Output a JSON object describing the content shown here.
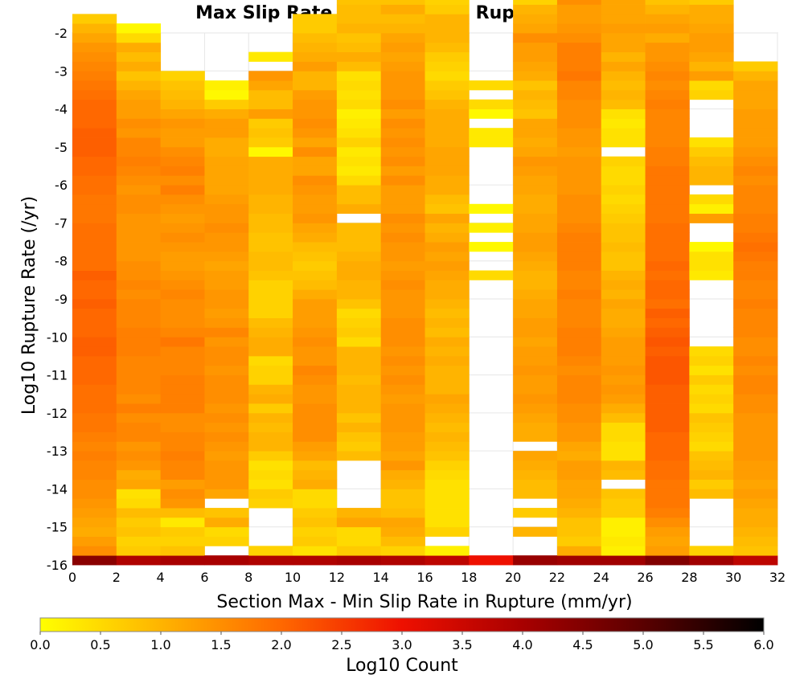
{
  "chart_data": {
    "type": "heatmap",
    "title": "Max Slip Rate Difference vs Rupture Rate",
    "xlabel": "Section Max - Min Slip Rate in Rupture (mm/yr)",
    "ylabel": "Log10 Rupture Rate (/yr)",
    "xlim": [
      0,
      32
    ],
    "ylim": [
      -16,
      -2
    ],
    "x_ticks": [
      0,
      2,
      4,
      6,
      8,
      10,
      12,
      14,
      16,
      18,
      20,
      22,
      24,
      26,
      28,
      30,
      32
    ],
    "y_ticks": [
      -2,
      -3,
      -4,
      -5,
      -6,
      -7,
      -8,
      -9,
      -10,
      -11,
      -12,
      -13,
      -14,
      -15,
      -16
    ],
    "x_bin_width": 2,
    "y_bin_height": 0.25,
    "y_bin_start": -16,
    "grid": true,
    "colorbar": {
      "label": "Log10 Count",
      "range": [
        0,
        6
      ],
      "ticks": [
        "0.0",
        "0.5",
        "1.0",
        "1.5",
        "2.0",
        "2.5",
        "3.0",
        "3.5",
        "4.0",
        "4.5",
        "5.0",
        "5.5",
        "6.0"
      ],
      "stops": [
        {
          "value": 0.0,
          "color": "#ffff00"
        },
        {
          "value": 1.0,
          "color": "#ffb400"
        },
        {
          "value": 2.0,
          "color": "#ff6800"
        },
        {
          "value": 3.0,
          "color": "#ee1000"
        },
        {
          "value": 4.0,
          "color": "#a80000"
        },
        {
          "value": 5.0,
          "color": "#5a0000"
        },
        {
          "value": 6.0,
          "color": "#000000"
        }
      ]
    },
    "columns": [
      {
        "x0": 0,
        "values": [
          4.4,
          1.5,
          1.3,
          1.1,
          1.2,
          1.3,
          1.4,
          1.5,
          1.5,
          1.6,
          1.6,
          1.7,
          1.6,
          1.7,
          1.8,
          1.8,
          1.9,
          1.9,
          1.9,
          2.0,
          2.0,
          2.0,
          2.1,
          2.1,
          2.0,
          2.0,
          2.0,
          2.1,
          2.0,
          2.0,
          2.1,
          1.9,
          1.9,
          1.9,
          1.9,
          1.9,
          1.8,
          1.8,
          1.8,
          1.9,
          1.9,
          2.0,
          2.0,
          2.1,
          2.1,
          2.1,
          2.0,
          2.0,
          2.0,
          1.9,
          1.8,
          1.7,
          1.6,
          1.5,
          1.4,
          1.2,
          1.0,
          0.7,
          null,
          null,
          null,
          null,
          null,
          null,
          null,
          null
        ]
      },
      {
        "x0": 2,
        "values": [
          3.9,
          0.7,
          0.6,
          0.8,
          0.7,
          0.9,
          0.5,
          0.4,
          1.2,
          1.1,
          1.4,
          1.5,
          1.4,
          1.6,
          1.6,
          1.5,
          1.7,
          1.5,
          1.6,
          1.6,
          1.6,
          1.6,
          1.7,
          1.7,
          1.7,
          1.6,
          1.6,
          1.6,
          1.5,
          1.6,
          1.5,
          1.5,
          1.4,
          1.4,
          1.4,
          1.4,
          1.4,
          1.5,
          1.5,
          1.4,
          1.5,
          1.6,
          1.7,
          1.6,
          1.6,
          1.4,
          1.5,
          1.3,
          1.3,
          1.2,
          1.0,
          0.8,
          1.1,
          0.9,
          1.1,
          0.5,
          0.1,
          null,
          null,
          null,
          null,
          null,
          null,
          null,
          null,
          null
        ]
      },
      {
        "x0": 4,
        "values": [
          4.0,
          0.8,
          0.6,
          0.7,
          0.3,
          0.9,
          1.4,
          1.5,
          1.3,
          1.6,
          1.6,
          1.7,
          1.6,
          1.6,
          1.5,
          1.5,
          1.7,
          1.7,
          1.7,
          1.7,
          1.6,
          1.6,
          1.6,
          1.8,
          1.6,
          1.5,
          1.5,
          1.5,
          1.6,
          1.5,
          1.4,
          1.3,
          1.3,
          1.4,
          1.5,
          1.4,
          1.3,
          1.4,
          1.5,
          1.7,
          1.5,
          1.7,
          1.6,
          1.5,
          1.3,
          1.3,
          1.4,
          1.2,
          1.0,
          0.9,
          0.8,
          0.6,
          null,
          null,
          null,
          null,
          null,
          null,
          null,
          null,
          null,
          null,
          null,
          null,
          null,
          null
        ]
      },
      {
        "x0": 6,
        "values": [
          4.0,
          null,
          0.6,
          0.5,
          1.1,
          0.8,
          null,
          1.2,
          1.4,
          1.4,
          1.4,
          1.3,
          1.4,
          1.5,
          1.4,
          1.5,
          1.4,
          1.5,
          1.5,
          1.5,
          1.4,
          1.5,
          1.5,
          1.4,
          1.6,
          1.4,
          1.3,
          1.4,
          1.4,
          1.3,
          1.3,
          1.2,
          1.3,
          1.4,
          1.4,
          1.5,
          1.4,
          1.4,
          1.3,
          1.2,
          1.2,
          1.2,
          1.2,
          1.1,
          1.1,
          1.3,
          1.3,
          1.1,
          0.7,
          0.1,
          0.2,
          null,
          null,
          null,
          null,
          null,
          null,
          null,
          null,
          null,
          null,
          null,
          null,
          null,
          null,
          null
        ]
      },
      {
        "x0": 8,
        "values": [
          3.9,
          0.6,
          null,
          null,
          null,
          null,
          0.6,
          0.7,
          0.4,
          0.5,
          0.4,
          0.7,
          1.0,
          1.0,
          0.9,
          1.0,
          0.7,
          1.1,
          1.0,
          0.6,
          0.6,
          0.5,
          1.1,
          1.1,
          1.0,
          0.9,
          0.6,
          0.6,
          0.6,
          0.6,
          0.8,
          0.9,
          0.9,
          0.8,
          0.8,
          0.9,
          0.9,
          1.0,
          1.0,
          1.1,
          1.1,
          1.1,
          1.1,
          0.1,
          0.7,
          0.8,
          0.7,
          1.3,
          0.9,
          0.9,
          1.2,
          1.4,
          null,
          0.3,
          null,
          null,
          null,
          null,
          null,
          null,
          null,
          null,
          null,
          null,
          null,
          null,
          null,
          null
        ]
      },
      {
        "x0": 10,
        "values": [
          3.9,
          0.4,
          0.7,
          0.6,
          0.8,
          0.7,
          0.5,
          0.5,
          1.1,
          1.0,
          0.9,
          1.2,
          1.3,
          1.5,
          1.5,
          1.5,
          1.5,
          1.4,
          1.4,
          1.5,
          1.6,
          1.4,
          1.4,
          1.5,
          1.4,
          1.3,
          1.3,
          1.3,
          1.1,
          0.9,
          0.8,
          0.7,
          0.8,
          0.9,
          1.1,
          1.2,
          1.4,
          1.3,
          1.3,
          1.4,
          1.5,
          1.2,
          1.2,
          1.5,
          1.2,
          1.4,
          1.5,
          1.4,
          1.4,
          1.3,
          1.0,
          1.0,
          1.3,
          1.1,
          1.0,
          0.9,
          0.7,
          0.7,
          null,
          null,
          null,
          null,
          null,
          null,
          null,
          null,
          null,
          null
        ]
      },
      {
        "x0": 12,
        "values": [
          4.0,
          0.7,
          0.5,
          0.5,
          1.2,
          1.0,
          null,
          null,
          null,
          null,
          null,
          0.9,
          0.7,
          0.8,
          1.0,
          0.8,
          1.0,
          1.0,
          1.0,
          0.9,
          1.0,
          1.0,
          1.0,
          0.5,
          0.7,
          0.6,
          0.5,
          0.8,
          1.0,
          1.0,
          1.1,
          1.1,
          1.0,
          0.9,
          0.9,
          0.9,
          null,
          1.1,
          0.9,
          0.9,
          0.5,
          0.3,
          0.4,
          0.3,
          0.6,
          0.4,
          0.3,
          0.2,
          0.5,
          0.4,
          0.5,
          0.4,
          0.9,
          1.1,
          0.9,
          0.8,
          1.0,
          0.9,
          0.9,
          0.8,
          0.6,
          0.5,
          null,
          null,
          null,
          null
        ]
      },
      {
        "x0": 14,
        "values": [
          3.9,
          0.6,
          0.9,
          1.1,
          1.2,
          0.9,
          0.8,
          0.8,
          1.0,
          1.1,
          1.4,
          1.2,
          1.3,
          1.3,
          1.4,
          1.4,
          1.4,
          1.3,
          1.4,
          1.5,
          1.4,
          1.5,
          1.4,
          1.5,
          1.5,
          1.5,
          1.4,
          1.4,
          1.4,
          1.5,
          1.4,
          1.3,
          1.4,
          1.4,
          1.5,
          1.4,
          1.5,
          1.3,
          1.3,
          1.3,
          1.5,
          1.3,
          1.5,
          1.4,
          1.5,
          1.4,
          1.5,
          1.3,
          1.5,
          1.4,
          1.4,
          1.4,
          1.3,
          1.2,
          1.3,
          1.2,
          1.0,
          0.9,
          1.1,
          0.8,
          0.6,
          null,
          null,
          null,
          null,
          null
        ]
      },
      {
        "x0": 16,
        "values": [
          3.7,
          0.2,
          null,
          0.6,
          0.4,
          0.4,
          0.4,
          0.4,
          0.4,
          0.5,
          0.6,
          0.8,
          0.9,
          1.0,
          0.9,
          1.0,
          1.1,
          1.2,
          1.0,
          1.0,
          1.0,
          1.1,
          1.0,
          1.1,
          0.9,
          1.0,
          0.9,
          1.0,
          1.1,
          1.1,
          1.2,
          1.3,
          1.2,
          1.3,
          1.1,
          1.0,
          1.2,
          0.8,
          0.9,
          1.1,
          1.1,
          1.2,
          1.2,
          1.2,
          1.1,
          1.1,
          1.1,
          1.1,
          1.0,
          0.8,
          0.7,
          0.5,
          0.6,
          0.7,
          0.9,
          1.0,
          1.0,
          1.0,
          0.7,
          0.6,
          null,
          null,
          null,
          null,
          null,
          null
        ]
      },
      {
        "x0": 18,
        "values": [
          3.0,
          null,
          null,
          null,
          null,
          null,
          null,
          null,
          null,
          null,
          null,
          null,
          null,
          null,
          null,
          null,
          null,
          null,
          null,
          null,
          null,
          null,
          null,
          null,
          null,
          null,
          null,
          null,
          null,
          null,
          0.5,
          null,
          null,
          0.1,
          null,
          0.2,
          null,
          0.1,
          null,
          null,
          null,
          null,
          null,
          null,
          0.3,
          0.3,
          null,
          0.1,
          0.5,
          null,
          0.5,
          null,
          null,
          null,
          null,
          null,
          null,
          null,
          null,
          null,
          null,
          null,
          null,
          null,
          null,
          null
        ]
      },
      {
        "x0": 20,
        "values": [
          4.2,
          null,
          null,
          1.0,
          null,
          0.7,
          null,
          0.9,
          0.9,
          1.0,
          1.1,
          1.2,
          null,
          1.1,
          1.1,
          1.2,
          1.3,
          1.4,
          1.3,
          1.3,
          1.4,
          1.3,
          1.3,
          1.2,
          1.3,
          1.3,
          1.2,
          1.2,
          1.1,
          1.0,
          1.0,
          1.1,
          1.2,
          1.3,
          1.3,
          1.2,
          1.2,
          1.1,
          1.1,
          1.2,
          1.2,
          1.3,
          1.4,
          1.2,
          1.1,
          1.2,
          1.2,
          0.8,
          0.9,
          1.0,
          0.8,
          1.1,
          1.2,
          1.3,
          1.3,
          1.5,
          1.2,
          1.1,
          1.0,
          0.6,
          1.0,
          0.5,
          0.4,
          null,
          null,
          null
        ]
      },
      {
        "x0": 22,
        "values": [
          4.1,
          1.1,
          0.7,
          0.8,
          0.8,
          1.0,
          1.1,
          1.2,
          1.2,
          1.3,
          1.3,
          1.1,
          1.2,
          1.4,
          1.4,
          1.5,
          1.5,
          1.6,
          1.6,
          1.6,
          1.5,
          1.6,
          1.7,
          1.7,
          1.7,
          1.6,
          1.6,
          1.6,
          1.7,
          1.6,
          1.6,
          1.7,
          1.7,
          1.7,
          1.7,
          1.6,
          1.5,
          1.5,
          1.5,
          1.4,
          1.4,
          1.4,
          1.4,
          1.3,
          1.4,
          1.4,
          1.5,
          1.5,
          1.5,
          1.6,
          1.6,
          1.8,
          1.7,
          1.7,
          1.7,
          1.5,
          1.4,
          1.3,
          1.3,
          1.5,
          1.5,
          1.1,
          1.0,
          null,
          1.1,
          null
        ]
      },
      {
        "x0": 24,
        "values": [
          4.1,
          0.2,
          0.3,
          0.2,
          0.2,
          0.7,
          0.7,
          0.8,
          null,
          0.9,
          1.0,
          0.4,
          0.4,
          0.5,
          0.5,
          0.9,
          1.1,
          1.3,
          1.4,
          1.3,
          1.4,
          1.3,
          1.3,
          1.3,
          1.2,
          1.1,
          1.1,
          1.2,
          1.0,
          1.1,
          1.0,
          0.8,
          0.8,
          0.9,
          0.8,
          0.8,
          0.7,
          0.6,
          0.5,
          0.6,
          0.5,
          0.5,
          0.6,
          null,
          0.4,
          0.4,
          0.3,
          0.4,
          0.9,
          1.0,
          0.9,
          1.0,
          1.2,
          1.0,
          1.2,
          1.2,
          1.3,
          1.2,
          1.2,
          1.2,
          1.1,
          1.1,
          1.1,
          1.0,
          0.9,
          0.9
        ]
      },
      {
        "x0": 26,
        "values": [
          4.5,
          1.3,
          1.2,
          1.3,
          1.5,
          1.7,
          1.8,
          1.8,
          1.8,
          1.9,
          1.9,
          2.0,
          2.0,
          2.0,
          2.1,
          2.1,
          2.1,
          2.1,
          2.1,
          2.2,
          2.2,
          2.2,
          2.1,
          2.2,
          2.1,
          2.0,
          2.1,
          1.9,
          2.0,
          2.0,
          1.9,
          2.0,
          1.9,
          1.9,
          1.9,
          1.9,
          1.8,
          1.8,
          1.8,
          1.8,
          1.8,
          1.8,
          1.7,
          1.7,
          1.6,
          1.6,
          1.6,
          1.6,
          1.7,
          1.6,
          1.5,
          1.6,
          1.5,
          1.4,
          1.4,
          1.1,
          1.3,
          1.2,
          1.0,
          0.8,
          0.8,
          1.0,
          1.1,
          0.8,
          0.8,
          1.0
        ]
      },
      {
        "x0": 28,
        "values": [
          4.1,
          0.6,
          null,
          null,
          null,
          null,
          null,
          0.9,
          0.7,
          1.0,
          0.9,
          0.8,
          0.5,
          0.6,
          0.7,
          0.8,
          0.5,
          0.6,
          0.5,
          0.7,
          0.4,
          0.6,
          0.5,
          null,
          null,
          null,
          null,
          null,
          null,
          null,
          0.3,
          0.4,
          0.4,
          0.1,
          null,
          null,
          1.3,
          0.2,
          0.5,
          null,
          1.0,
          1.0,
          0.9,
          0.7,
          0.4,
          null,
          null,
          null,
          null,
          0.6,
          0.5,
          1.3,
          1.0,
          1.2,
          1.3,
          1.3,
          1.2,
          1.1,
          1.1,
          0.7,
          0.4,
          null,
          null,
          null,
          null,
          null
        ]
      },
      {
        "x0": 30,
        "values": [
          3.7,
          0.8,
          0.9,
          1.0,
          1.1,
          1.1,
          1.2,
          1.3,
          1.2,
          1.3,
          1.3,
          1.4,
          1.4,
          1.4,
          1.4,
          1.4,
          1.5,
          1.5,
          1.6,
          1.6,
          1.5,
          1.6,
          1.5,
          1.5,
          1.6,
          1.6,
          1.6,
          1.7,
          1.6,
          1.6,
          1.7,
          1.7,
          1.8,
          1.9,
          1.8,
          1.7,
          1.7,
          1.6,
          1.6,
          1.6,
          1.5,
          1.6,
          1.5,
          1.4,
          1.3,
          1.3,
          1.3,
          1.3,
          1.2,
          1.2,
          1.2,
          1.0,
          0.7,
          null,
          null,
          null,
          null,
          null,
          null,
          null,
          null,
          null,
          null,
          null,
          null,
          null
        ]
      }
    ]
  }
}
